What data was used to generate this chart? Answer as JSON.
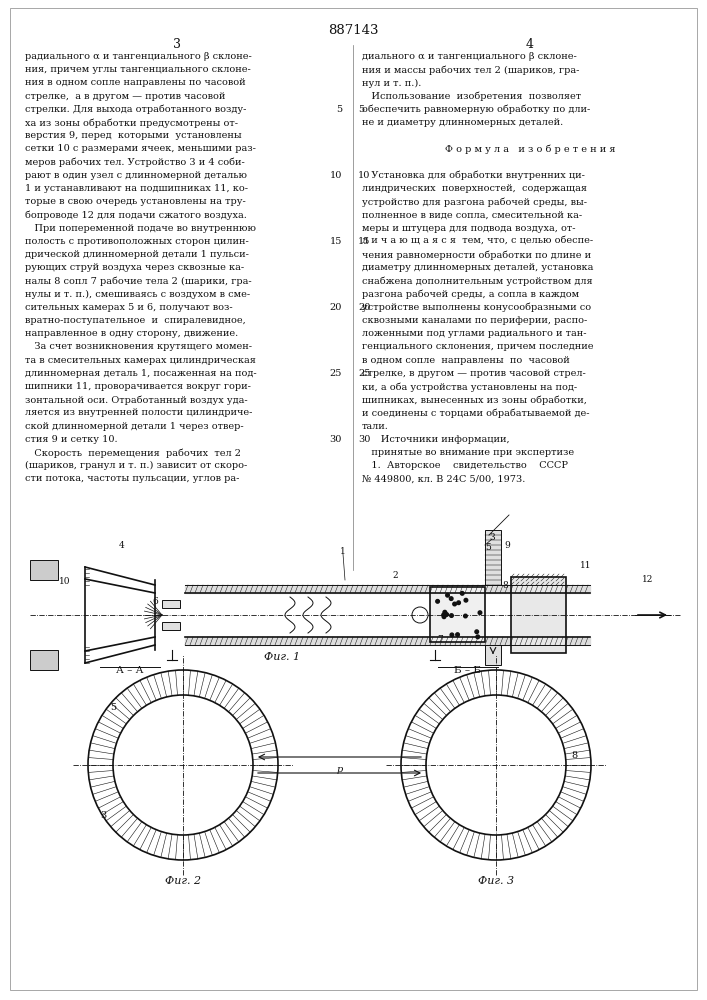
{
  "patent_number": "887143",
  "page_left": "3",
  "page_right": "4",
  "bg_color": "#ffffff",
  "text_color": "#111111",
  "col1_text": [
    "радиального α и тангенциального β склоне-",
    "ния, причем углы тангенциального склоне-",
    "ния в одном сопле направлены по часовой",
    "стрелке,  а в другом — против часовой",
    "стрелки. Для выхода отработанного возду-",
    "ха из зоны обработки предусмотрены от-",
    "верстия 9, перед  которыми  установлены",
    "сетки 10 с размерами ячеек, меньшими раз-",
    "меров рабочих тел. Устройство 3 и 4 соби-",
    "рают в один узел с длинномерной деталью",
    "1 и устанавливают на подшипниках 11, ко-",
    "торые в свою очередь установлены на тру-",
    "бопроводе 12 для подачи сжатого воздуха.",
    "   При попеременной подаче во внутреннюю",
    "полость с противоположных сторон цилин-",
    "дрической длинномерной детали 1 пульси-",
    "рующих струй воздуха через сквозные ка-",
    "налы 8 сопл 7 рабочие тела 2 (шарики, гра-",
    "нулы и т. п.), смешиваясь с воздухом в сме-",
    "сительных камерах 5 и 6, получают воз-",
    "вратно-поступательное  и  спиралевидное,",
    "направленное в одну сторону, движение.",
    "   За счет возникновения крутящего момен-",
    "та в смесительных камерах цилиндрическая",
    "длинномерная деталь 1, посаженная на под-",
    "шипники 11, проворачивается вокруг гори-",
    "зонтальной оси. Отработанный воздух уда-",
    "ляется из внутренней полости цилиндриче-",
    "ской длинномерной детали 1 через отвер-",
    "стия 9 и сетку 10.",
    "   Скорость  перемещения  рабочих  тел 2",
    "(шариков, гранул и т. п.) зависит от скоро-",
    "сти потока, частоты пульсации, углов ра-"
  ],
  "col2_text": [
    "диального α и тангенциального β склоне-",
    "ния и массы рабочих тел 2 (шариков, гра-",
    "нул и т. п.).",
    "   Использование  изобретения  позволяет",
    "обеспечить равномерную обработку по дли-",
    "не и диаметру длинномерных деталей.",
    "",
    "Ф о р м у л а   и з о б р е т е н и я",
    "",
    "   Установка для обработки внутренних ци-",
    "линдрических  поверхностей,  содержащая",
    "устройство для разгона рабочей среды, вы-",
    "полненное в виде сопла, смесительной ка-",
    "меры и штуцера для подвода воздуха, от-",
    "л и ч а ю щ а я с я  тем, что, с целью обеспе-",
    "чения равномерности обработки по длине и",
    "диаметру длинномерных деталей, установка",
    "снабжена дополнительным устройством для",
    "разгона рабочей среды, а сопла в каждом",
    "устройстве выполнены конусообразными со",
    "сквозными каналами по периферии, распо-",
    "ложенными под углами радиального и тан-",
    "генциального склонения, причем последние",
    "в одном сопле  направлены  по  часовой",
    "стрелке, в другом — против часовой стрел-",
    "ки, а оба устройства установлены на под-",
    "шипниках, вынесенных из зоны обработки,",
    "и соединены с торцами обрабатываемой де-",
    "тали.",
    "      Источники информации,",
    "   принятые во внимание при экспертизе",
    "   1.  Авторское    свидетельство    СССР",
    "№ 449800, кл. В 24С 5/00, 1973."
  ],
  "fig_captions": [
    "Фиг. 1",
    "Фиг. 2",
    "Фиг. 3"
  ]
}
